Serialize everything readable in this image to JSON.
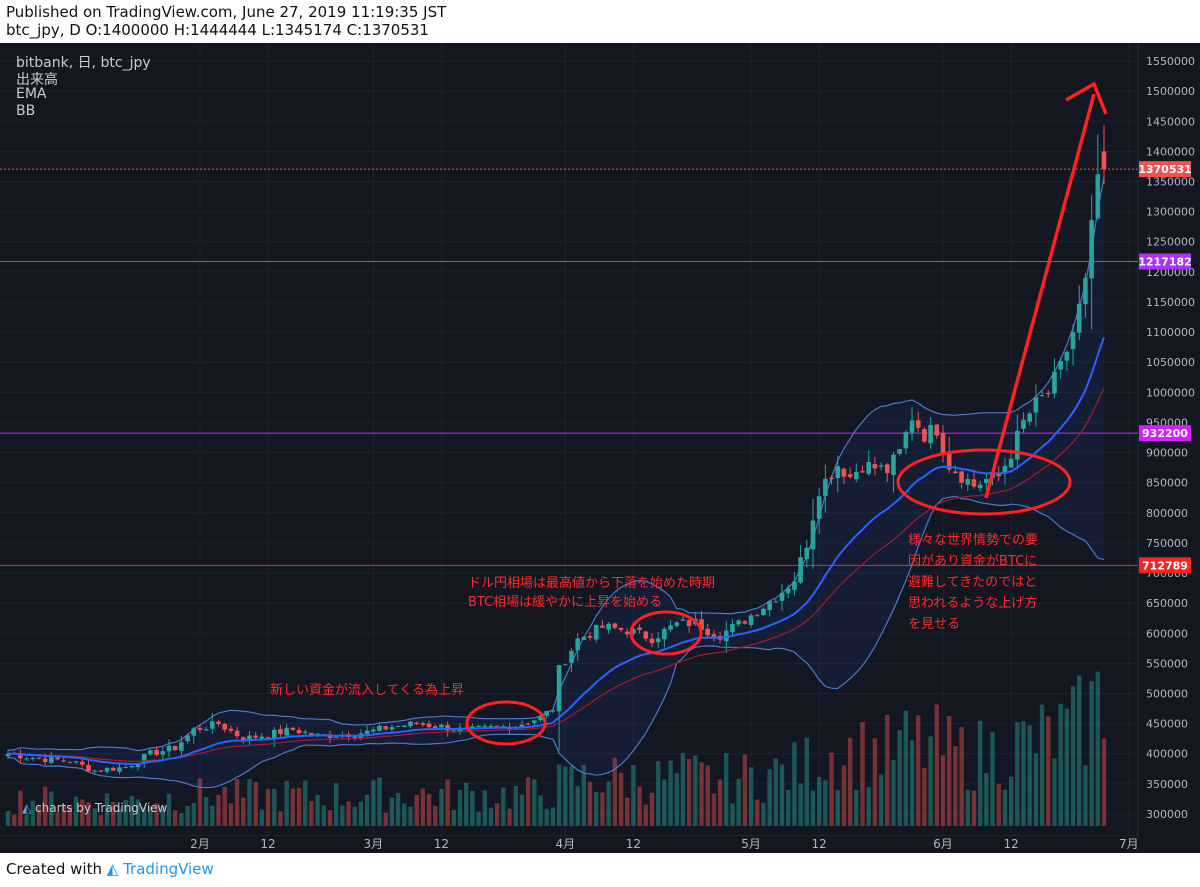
{
  "header": {
    "line1": "Published on TradingView.com, June 27, 2019 11:19:35 JST",
    "line2": "btc_jpy, D O:1400000 H:1444444 L:1345174 C:1370531"
  },
  "legend": {
    "symbol": "bitbank, 日, btc_jpy",
    "volume": "出来高",
    "ema": "EMA",
    "bb": "BB"
  },
  "watermark": "charts by TradingView",
  "footer": {
    "created_with": "Created with",
    "brand": "TradingView"
  },
  "annotations": {
    "a1": "新しい資金が流入してくる為上昇",
    "a2_l1": "ドル円相場は最高値から下落を始めた時期",
    "a2_l2": "BTC相場は緩やかに上昇を始める",
    "a3_l1": "様々な世界情勢での要",
    "a3_l2": "因があり資金がBTCに",
    "a3_l3": "避難してきたのではと",
    "a3_l4": "思われるような上げ方",
    "a3_l5": "を見せる"
  },
  "colors": {
    "background": "#131722",
    "up": "#26a69a",
    "down": "#ef5350",
    "ema": "#2962ff",
    "bb": "#4a78c8",
    "annotation": "#ff2a2a"
  },
  "chart_data": {
    "type": "candlestick",
    "title": "bitbank, 日, btc_jpy",
    "y_range": [
      280000,
      1565000
    ],
    "y_ticks": [
      300000,
      350000,
      400000,
      450000,
      500000,
      550000,
      600000,
      650000,
      700000,
      750000,
      800000,
      850000,
      900000,
      950000,
      1000000,
      1050000,
      1100000,
      1150000,
      1200000,
      1250000,
      1300000,
      1350000,
      1400000,
      1450000,
      1500000,
      1550000
    ],
    "x_ticks": [
      {
        "label": "2月",
        "day": 31
      },
      {
        "label": "12",
        "day": 42
      },
      {
        "label": "3月",
        "day": 59
      },
      {
        "label": "12",
        "day": 70
      },
      {
        "label": "4月",
        "day": 90
      },
      {
        "label": "12",
        "day": 101
      },
      {
        "label": "5月",
        "day": 120
      },
      {
        "label": "12",
        "day": 131
      },
      {
        "label": "6月",
        "day": 151
      },
      {
        "label": "12",
        "day": 162
      },
      {
        "label": "7月",
        "day": 181
      }
    ],
    "horizontal_levels": [
      {
        "value": 1370531,
        "label": "1370531",
        "color": "#ef5350",
        "style": "dotted"
      },
      {
        "value": 1217182,
        "label": "1217182",
        "color": "#b030ff",
        "style": "solid"
      },
      {
        "value": 932200,
        "label": "932200",
        "color": "#d020ff",
        "style": "solid"
      },
      {
        "value": 712789,
        "label": "712789",
        "color": "#ff2020",
        "style": "solid"
      }
    ],
    "ohlc_waypoints": [
      [
        0,
        400000
      ],
      [
        5,
        392000
      ],
      [
        10,
        388000
      ],
      [
        14,
        372000
      ],
      [
        19,
        378000
      ],
      [
        23,
        400000
      ],
      [
        27,
        410000
      ],
      [
        30,
        440000
      ],
      [
        34,
        450000
      ],
      [
        38,
        425000
      ],
      [
        42,
        432000
      ],
      [
        46,
        440000
      ],
      [
        50,
        430000
      ],
      [
        54,
        432000
      ],
      [
        58,
        436000
      ],
      [
        62,
        445000
      ],
      [
        66,
        450000
      ],
      [
        70,
        445000
      ],
      [
        74,
        438000
      ],
      [
        78,
        443000
      ],
      [
        82,
        447000
      ],
      [
        86,
        460000
      ],
      [
        88,
        475000
      ],
      [
        89,
        540000
      ],
      [
        92,
        590000
      ],
      [
        96,
        610000
      ],
      [
        100,
        605000
      ],
      [
        104,
        592000
      ],
      [
        108,
        615000
      ],
      [
        111,
        618000
      ],
      [
        113,
        605000
      ],
      [
        115,
        598000
      ],
      [
        118,
        615000
      ],
      [
        122,
        645000
      ],
      [
        125,
        670000
      ],
      [
        127,
        690000
      ],
      [
        129,
        750000
      ],
      [
        131,
        840000
      ],
      [
        134,
        880000
      ],
      [
        136,
        860000
      ],
      [
        138,
        880000
      ],
      [
        142,
        870000
      ],
      [
        144,
        900000
      ],
      [
        146,
        960000
      ],
      [
        148,
        930000
      ],
      [
        150,
        940000
      ],
      [
        152,
        880000
      ],
      [
        154,
        862000
      ],
      [
        156,
        845000
      ],
      [
        158,
        855000
      ],
      [
        160,
        860000
      ],
      [
        162,
        900000
      ],
      [
        164,
        950000
      ],
      [
        166,
        980000
      ],
      [
        168,
        1000000
      ],
      [
        170,
        1040000
      ],
      [
        172,
        1100000
      ],
      [
        174,
        1180000
      ],
      [
        175,
        1270000
      ],
      [
        176,
        1360000
      ],
      [
        177,
        1370531
      ]
    ],
    "volume_scale": {
      "top_y": 630,
      "max": 1.0
    },
    "bb_band_note": "Bollinger bands and EMA(20) computed from closes"
  }
}
